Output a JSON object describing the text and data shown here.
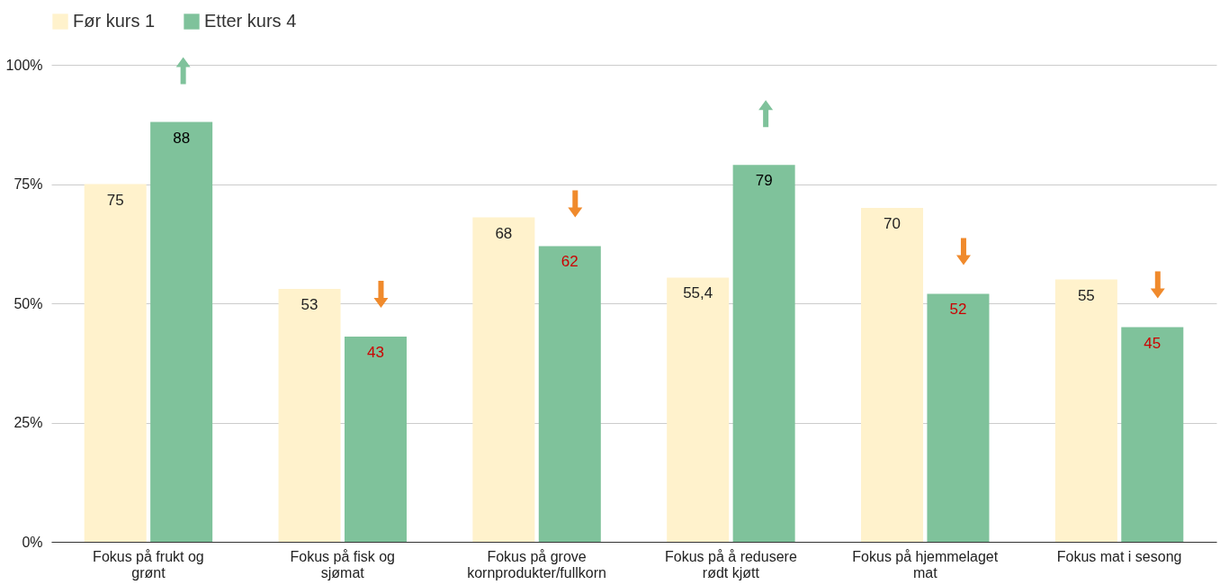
{
  "chart_data": {
    "type": "bar",
    "categories": [
      "Fokus på frukt og grønt",
      "Fokus på fisk og sjømat",
      "Fokus på grove kornprodukter/fullkorn",
      "Fokus på å redusere rødt kjøtt",
      "Fokus på hjemmelaget mat",
      "Fokus mat i sesong"
    ],
    "series": [
      {
        "name": "Før kurs 1",
        "color": "#fff2cc",
        "values": [
          75,
          53,
          68,
          55.4,
          70,
          55
        ],
        "value_labels": [
          "75",
          "53",
          "68",
          "55,4",
          "70",
          "55"
        ]
      },
      {
        "name": "Etter kurs 4",
        "color": "#7fc29b",
        "values": [
          88,
          43,
          62,
          79,
          52,
          45
        ],
        "value_labels": [
          "88",
          "43",
          "62",
          "79",
          "52",
          "45"
        ]
      }
    ],
    "ylim": [
      0,
      100
    ],
    "yticks": [
      {
        "value": 0,
        "label": "0%"
      },
      {
        "value": 25,
        "label": "25%"
      },
      {
        "value": 50,
        "label": "50%"
      },
      {
        "value": 75,
        "label": "75%"
      },
      {
        "value": 100,
        "label": "100%"
      }
    ],
    "grid": "y",
    "legend": "top"
  }
}
